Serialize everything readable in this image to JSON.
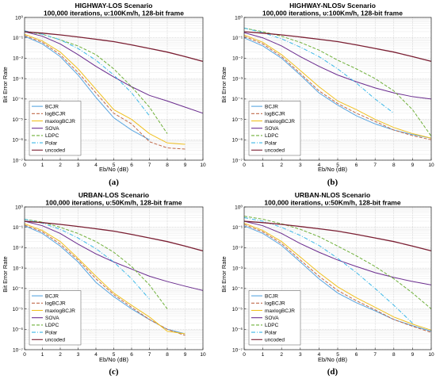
{
  "colors": {
    "BCJR": "#5aa6e0",
    "logBCJR": "#c06a4a",
    "maxlogBCJR": "#f0c020",
    "SOVA": "#6a2c8e",
    "LDPC": "#6fb03a",
    "Polar": "#3cb8e8",
    "uncoded": "#7a1e32"
  },
  "chart_data": [
    {
      "type": "line",
      "panel_label": "(a)",
      "title": "HIGHWAY-LOS Scenario",
      "subtitle": "100,000 iterations,  υ:100Km/h, 128-bit frame",
      "xlabel": "Eb/No (dB)",
      "ylabel": "Bit Error Rate",
      "xlim": [
        0,
        10
      ],
      "ylim": [
        1e-07,
        1
      ],
      "yscale": "log",
      "xticks": [
        "0",
        "1",
        "2",
        "3",
        "4",
        "5",
        "6",
        "7",
        "8",
        "9",
        "10"
      ],
      "yticks": [
        "10⁰",
        "10⁻¹",
        "10⁻²",
        "10⁻³",
        "10⁻⁴",
        "10⁻⁵",
        "10⁻⁶",
        "10⁻⁷"
      ],
      "grid": true,
      "legend_position": "bottom-left",
      "series": [
        {
          "name": "BCJR",
          "style": "solid",
          "x": [
            0,
            1,
            2,
            3,
            4,
            5,
            6,
            7
          ],
          "y": [
            0.12,
            0.05,
            0.012,
            0.0015,
            0.00012,
            1.2e-05,
            3e-06,
            1e-06
          ]
        },
        {
          "name": "logBCJR",
          "style": "dashed",
          "x": [
            0,
            1,
            2,
            3,
            4,
            5,
            6,
            7,
            8,
            9
          ],
          "y": [
            0.13,
            0.06,
            0.015,
            0.002,
            0.0002,
            2e-05,
            6e-06,
            8e-07,
            4e-07,
            3.5e-07
          ]
        },
        {
          "name": "maxlogBCJR",
          "style": "solid",
          "x": [
            0,
            1,
            2,
            3,
            4,
            5,
            6,
            7,
            8,
            9
          ],
          "y": [
            0.15,
            0.07,
            0.02,
            0.003,
            0.0003,
            3e-05,
            1e-05,
            2e-06,
            7e-07,
            6e-07
          ]
        },
        {
          "name": "SOVA",
          "style": "solid",
          "x": [
            0,
            1,
            2,
            3,
            4,
            5,
            6,
            7,
            8,
            9,
            10
          ],
          "y": [
            0.2,
            0.12,
            0.05,
            0.015,
            0.004,
            0.0012,
            0.0004,
            0.00015,
            8e-05,
            4e-05,
            2e-05
          ]
        },
        {
          "name": "LDPC",
          "style": "dashed",
          "x": [
            0,
            1,
            2,
            3,
            4,
            5,
            6,
            7,
            8
          ],
          "y": [
            0.2,
            0.15,
            0.08,
            0.04,
            0.015,
            0.003,
            0.0004,
            4e-05,
            2e-06
          ]
        },
        {
          "name": "Polar",
          "style": "dashdot",
          "x": [
            0,
            1,
            2,
            3,
            4,
            5,
            6,
            7
          ],
          "y": [
            0.22,
            0.15,
            0.08,
            0.03,
            0.008,
            0.0015,
            0.0002,
            1.5e-05
          ]
        },
        {
          "name": "uncoded",
          "style": "solid",
          "x": [
            0,
            1,
            2,
            3,
            4,
            5,
            6,
            7,
            8,
            9,
            10
          ],
          "y": [
            0.2,
            0.17,
            0.14,
            0.11,
            0.085,
            0.065,
            0.045,
            0.03,
            0.02,
            0.012,
            0.007
          ]
        }
      ]
    },
    {
      "type": "line",
      "panel_label": "(b)",
      "title": "HIGHWAY-NLOSv Scenario",
      "subtitle": "100,000 iterations,  υ:100Km/h, 128-bit frame",
      "xlabel": "Eb/No (dB)",
      "ylabel": "Bit Error Rate",
      "xlim": [
        0,
        10
      ],
      "ylim": [
        1e-07,
        1
      ],
      "yscale": "log",
      "xticks": [
        "0",
        "1",
        "2",
        "3",
        "4",
        "5",
        "6",
        "7",
        "8",
        "9",
        "10"
      ],
      "yticks": [
        "10⁰",
        "10⁻¹",
        "10⁻²",
        "10⁻³",
        "10⁻⁴",
        "10⁻⁵",
        "10⁻⁶",
        "10⁻⁷"
      ],
      "grid": true,
      "legend_position": "bottom-left",
      "series": [
        {
          "name": "BCJR",
          "style": "solid",
          "x": [
            0,
            1,
            2,
            3,
            4,
            5,
            6,
            7,
            8,
            9,
            10
          ],
          "y": [
            0.1,
            0.04,
            0.01,
            0.0015,
            0.0002,
            5e-05,
            1.5e-05,
            6e-06,
            3e-06,
            1.8e-06,
            1.2e-06
          ]
        },
        {
          "name": "logBCJR",
          "style": "dashed",
          "x": [
            0,
            1,
            2,
            3,
            4,
            5,
            6,
            7,
            8,
            9,
            10
          ],
          "y": [
            0.12,
            0.05,
            0.012,
            0.0018,
            0.00025,
            6e-05,
            2e-05,
            8e-06,
            3e-06,
            1.6e-06,
            1e-06
          ]
        },
        {
          "name": "maxlogBCJR",
          "style": "solid",
          "x": [
            0,
            1,
            2,
            3,
            4,
            5,
            6,
            7,
            8,
            9,
            10
          ],
          "y": [
            0.14,
            0.06,
            0.015,
            0.0025,
            0.0004,
            8e-05,
            3e-05,
            1e-05,
            4e-06,
            2e-06,
            1.2e-06
          ]
        },
        {
          "name": "SOVA",
          "style": "solid",
          "x": [
            0,
            1,
            2,
            3,
            4,
            5,
            6,
            7,
            8,
            9,
            10
          ],
          "y": [
            0.18,
            0.1,
            0.04,
            0.012,
            0.004,
            0.0015,
            0.0007,
            0.00035,
            0.0002,
            0.00013,
            0.0001
          ]
        },
        {
          "name": "LDPC",
          "style": "dashed",
          "x": [
            0,
            1,
            2,
            3,
            4,
            5,
            6,
            7,
            8,
            9,
            10
          ],
          "y": [
            0.3,
            0.2,
            0.12,
            0.06,
            0.025,
            0.008,
            0.003,
            0.001,
            0.00025,
            3e-05,
            1.5e-06
          ]
        },
        {
          "name": "Polar",
          "style": "dashdot",
          "x": [
            0,
            1,
            2,
            3,
            4,
            5,
            6,
            7,
            8
          ],
          "y": [
            0.3,
            0.18,
            0.09,
            0.035,
            0.012,
            0.003,
            0.0006,
            0.0001,
            2e-05
          ]
        },
        {
          "name": "uncoded",
          "style": "solid",
          "x": [
            0,
            1,
            2,
            3,
            4,
            5,
            6,
            7,
            8,
            9,
            10
          ],
          "y": [
            0.2,
            0.17,
            0.14,
            0.11,
            0.085,
            0.065,
            0.045,
            0.03,
            0.02,
            0.012,
            0.007
          ]
        }
      ]
    },
    {
      "type": "line",
      "panel_label": "(c)",
      "title": "URBAN-LOS Scenario",
      "subtitle": "100,000 iterations,  υ:50Km/h, 128-bit frame",
      "xlabel": "Eb/No (dB)",
      "ylabel": "Bit Error Rate",
      "xlim": [
        0,
        10
      ],
      "ylim": [
        1e-07,
        1
      ],
      "yscale": "log",
      "xticks": [
        "0",
        "1",
        "2",
        "3",
        "4",
        "5",
        "6",
        "7",
        "8",
        "9",
        "10"
      ],
      "yticks": [
        "10⁰",
        "10⁻¹",
        "10⁻²",
        "10⁻³",
        "10⁻⁴",
        "10⁻⁵",
        "10⁻⁶",
        "10⁻⁷"
      ],
      "grid": true,
      "legend_position": "bottom-left",
      "series": [
        {
          "name": "BCJR",
          "style": "solid",
          "x": [
            0,
            1,
            2,
            3,
            4,
            5,
            6,
            7,
            8,
            9
          ],
          "y": [
            0.12,
            0.05,
            0.012,
            0.002,
            0.0002,
            4e-05,
            1e-05,
            3e-06,
            1e-06,
            6e-07
          ]
        },
        {
          "name": "logBCJR",
          "style": "dashed",
          "x": [
            0,
            1,
            2,
            3,
            4,
            5,
            6,
            7,
            8,
            9
          ],
          "y": [
            0.13,
            0.06,
            0.015,
            0.0025,
            0.0003,
            5e-05,
            1.2e-05,
            3e-06,
            1e-06,
            5e-07
          ]
        },
        {
          "name": "maxlogBCJR",
          "style": "solid",
          "x": [
            0,
            1,
            2,
            3,
            4,
            5,
            6,
            7,
            8,
            9
          ],
          "y": [
            0.15,
            0.07,
            0.02,
            0.003,
            0.0004,
            6e-05,
            1.5e-05,
            4e-06,
            8e-07,
            6e-07
          ]
        },
        {
          "name": "SOVA",
          "style": "solid",
          "x": [
            0,
            1,
            2,
            3,
            4,
            5,
            6,
            7,
            8,
            9,
            10
          ],
          "y": [
            0.2,
            0.12,
            0.05,
            0.015,
            0.005,
            0.002,
            0.0009,
            0.0004,
            0.00022,
            0.00013,
            8e-05
          ]
        },
        {
          "name": "LDPC",
          "style": "dashed",
          "x": [
            0,
            1,
            2,
            3,
            4,
            5,
            6,
            7,
            8
          ],
          "y": [
            0.25,
            0.18,
            0.1,
            0.05,
            0.02,
            0.006,
            0.0012,
            0.00015,
            1e-05
          ]
        },
        {
          "name": "Polar",
          "style": "dashdot",
          "x": [
            0,
            1,
            2,
            3,
            4,
            5,
            6,
            7
          ],
          "y": [
            0.25,
            0.16,
            0.08,
            0.03,
            0.009,
            0.002,
            0.0003,
            3e-05
          ]
        },
        {
          "name": "uncoded",
          "style": "solid",
          "x": [
            0,
            1,
            2,
            3,
            4,
            5,
            6,
            7,
            8,
            9,
            10
          ],
          "y": [
            0.2,
            0.17,
            0.14,
            0.11,
            0.085,
            0.065,
            0.045,
            0.03,
            0.02,
            0.012,
            0.007
          ]
        }
      ]
    },
    {
      "type": "line",
      "panel_label": "(d)",
      "title": "URBAN-NLOS Scenario",
      "subtitle": "100,000 iterations,  υ:50Km/h, 128-bit frame",
      "xlabel": "Eb/No (dB)",
      "ylabel": "Bit Error Rate",
      "xlim": [
        0,
        10
      ],
      "ylim": [
        1e-07,
        1
      ],
      "yscale": "log",
      "xticks": [
        "0",
        "1",
        "2",
        "3",
        "4",
        "5",
        "6",
        "7",
        "8",
        "9",
        "10"
      ],
      "yticks": [
        "10⁰",
        "10⁻¹",
        "10⁻²",
        "10⁻³",
        "10⁻⁴",
        "10⁻⁵",
        "10⁻⁶",
        "10⁻⁷"
      ],
      "grid": true,
      "legend_position": "bottom-left",
      "series": [
        {
          "name": "BCJR",
          "style": "solid",
          "x": [
            0,
            1,
            2,
            3,
            4,
            5,
            6,
            7,
            8,
            9,
            10
          ],
          "y": [
            0.12,
            0.05,
            0.013,
            0.002,
            0.0003,
            6e-05,
            2e-05,
            8e-06,
            3e-06,
            1.5e-06,
            8e-07
          ]
        },
        {
          "name": "logBCJR",
          "style": "dashed",
          "x": [
            0,
            1,
            2,
            3,
            4,
            5,
            6,
            7,
            8,
            9,
            10
          ],
          "y": [
            0.14,
            0.06,
            0.016,
            0.0025,
            0.0004,
            8e-05,
            2.5e-05,
            9e-06,
            3e-06,
            1.4e-06,
            7e-07
          ]
        },
        {
          "name": "maxlogBCJR",
          "style": "solid",
          "x": [
            0,
            1,
            2,
            3,
            4,
            5,
            6,
            7,
            8,
            9,
            10
          ],
          "y": [
            0.16,
            0.07,
            0.02,
            0.0035,
            0.0006,
            0.00012,
            3.5e-05,
            1.2e-05,
            4e-06,
            1.8e-06,
            9e-07
          ]
        },
        {
          "name": "SOVA",
          "style": "solid",
          "x": [
            0,
            1,
            2,
            3,
            4,
            5,
            6,
            7,
            8,
            9,
            10
          ],
          "y": [
            0.2,
            0.12,
            0.05,
            0.016,
            0.006,
            0.0025,
            0.0012,
            0.0006,
            0.00035,
            0.00022,
            0.00015
          ]
        },
        {
          "name": "LDPC",
          "style": "dashed",
          "x": [
            0,
            1,
            2,
            3,
            4,
            5,
            6,
            7,
            8,
            9,
            10
          ],
          "y": [
            0.35,
            0.25,
            0.15,
            0.08,
            0.035,
            0.012,
            0.004,
            0.0012,
            0.0003,
            6e-05,
            1e-05
          ]
        },
        {
          "name": "Polar",
          "style": "dashdot",
          "x": [
            0,
            1,
            2,
            3,
            4,
            5,
            6,
            7,
            8,
            9
          ],
          "y": [
            0.3,
            0.2,
            0.1,
            0.04,
            0.013,
            0.003,
            0.0006,
            0.0001,
            1.5e-05,
            2e-06
          ]
        },
        {
          "name": "uncoded",
          "style": "solid",
          "x": [
            0,
            1,
            2,
            3,
            4,
            5,
            6,
            7,
            8,
            9,
            10
          ],
          "y": [
            0.2,
            0.17,
            0.14,
            0.11,
            0.085,
            0.065,
            0.045,
            0.03,
            0.02,
            0.012,
            0.007
          ]
        }
      ]
    }
  ]
}
